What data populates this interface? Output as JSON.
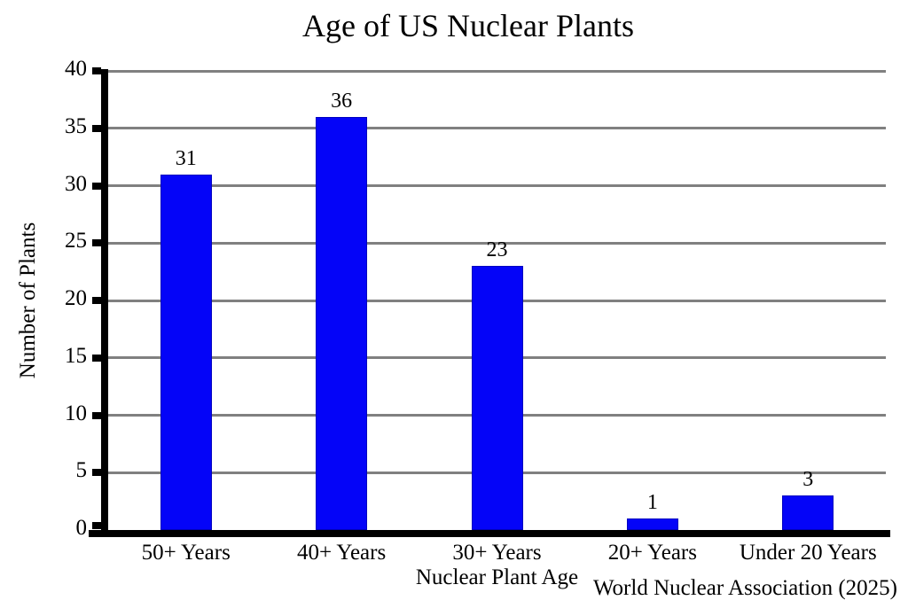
{
  "chart_data": {
    "type": "bar",
    "title": "Age of US Nuclear Plants",
    "categories": [
      "50+ Years",
      "40+ Years",
      "30+ Years",
      "20+ Years",
      "Under 20 Years"
    ],
    "values": [
      31,
      36,
      23,
      1,
      3
    ],
    "xlabel": "Nuclear Plant Age",
    "ylabel": "Number of Plants",
    "ylim": [
      0,
      40
    ],
    "ytick_step": 5,
    "yticks": [
      0,
      5,
      10,
      15,
      20,
      25,
      30,
      35,
      40
    ],
    "grid": "horizontal",
    "legend": "none",
    "annotation": "World Nuclear Association (2025)",
    "colors": {
      "bar": "#0404f8",
      "bar_border": "#0101c0",
      "gridline": "#808080",
      "axis": "#000000",
      "text": "#000000",
      "background": "#ffffff"
    }
  }
}
